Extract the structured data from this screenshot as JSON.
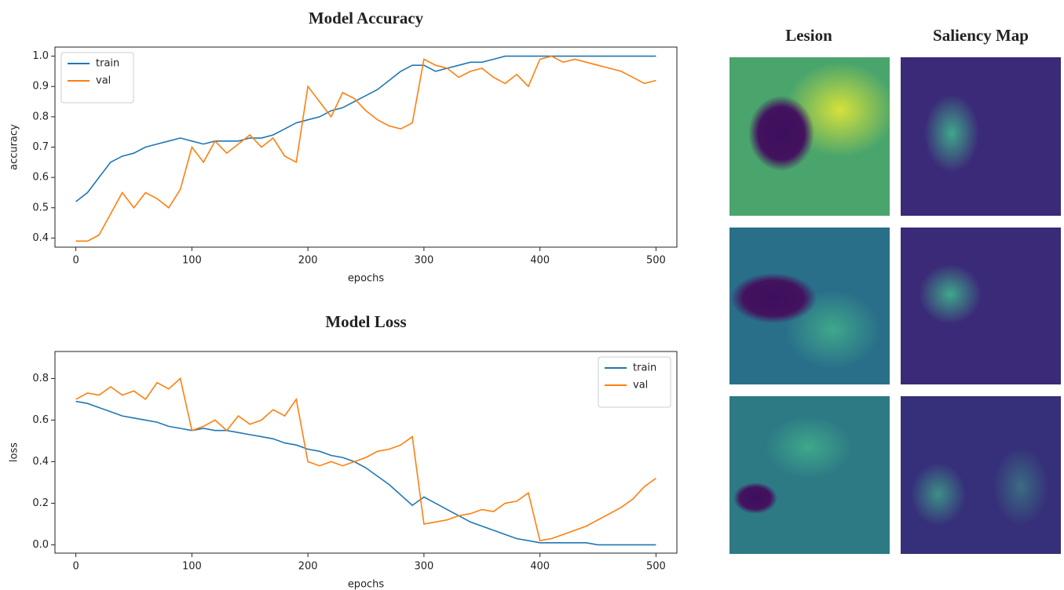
{
  "chart_data": [
    {
      "type": "line",
      "title": "Model Accuracy",
      "xlabel": "epochs",
      "ylabel": "accuracy",
      "x": [
        0,
        10,
        20,
        30,
        40,
        50,
        60,
        70,
        80,
        90,
        100,
        110,
        120,
        130,
        140,
        150,
        160,
        170,
        180,
        190,
        200,
        210,
        220,
        230,
        240,
        250,
        260,
        270,
        280,
        290,
        300,
        310,
        320,
        330,
        340,
        350,
        360,
        370,
        380,
        390,
        400,
        410,
        420,
        430,
        440,
        450,
        460,
        470,
        480,
        490,
        500
      ],
      "series": [
        {
          "name": "train",
          "color": "#1f77b4",
          "values": [
            0.52,
            0.55,
            0.6,
            0.65,
            0.67,
            0.68,
            0.7,
            0.71,
            0.72,
            0.73,
            0.72,
            0.71,
            0.72,
            0.72,
            0.72,
            0.73,
            0.73,
            0.74,
            0.76,
            0.78,
            0.79,
            0.8,
            0.82,
            0.83,
            0.85,
            0.87,
            0.89,
            0.92,
            0.95,
            0.97,
            0.97,
            0.95,
            0.96,
            0.97,
            0.98,
            0.98,
            0.99,
            1.0,
            1.0,
            1.0,
            1.0,
            1.0,
            1.0,
            1.0,
            1.0,
            1.0,
            1.0,
            1.0,
            1.0,
            1.0,
            1.0
          ]
        },
        {
          "name": "val",
          "color": "#ff7f0e",
          "values": [
            0.39,
            0.39,
            0.41,
            0.48,
            0.55,
            0.5,
            0.55,
            0.53,
            0.5,
            0.56,
            0.7,
            0.65,
            0.72,
            0.68,
            0.71,
            0.74,
            0.7,
            0.73,
            0.67,
            0.65,
            0.9,
            0.85,
            0.8,
            0.88,
            0.86,
            0.82,
            0.79,
            0.77,
            0.76,
            0.78,
            0.99,
            0.97,
            0.96,
            0.93,
            0.95,
            0.96,
            0.93,
            0.91,
            0.94,
            0.9,
            0.99,
            1.0,
            0.98,
            0.99,
            0.98,
            0.97,
            0.96,
            0.95,
            0.93,
            0.91,
            0.92
          ]
        }
      ],
      "xlim": [
        -18,
        518
      ],
      "xticks": [
        0,
        100,
        200,
        300,
        400,
        500
      ],
      "ylim": [
        0.37,
        1.03
      ],
      "yticks": [
        0.4,
        0.5,
        0.6,
        0.7,
        0.8,
        0.9,
        {
          "value": 1,
          "label": "1.0"
        }
      ],
      "legend": "upper-left"
    },
    {
      "type": "line",
      "title": "Model Loss",
      "xlabel": "epochs",
      "ylabel": "loss",
      "x": [
        0,
        10,
        20,
        30,
        40,
        50,
        60,
        70,
        80,
        90,
        100,
        110,
        120,
        130,
        140,
        150,
        160,
        170,
        180,
        190,
        200,
        210,
        220,
        230,
        240,
        250,
        260,
        270,
        280,
        290,
        300,
        310,
        320,
        330,
        340,
        350,
        360,
        370,
        380,
        390,
        400,
        410,
        420,
        430,
        440,
        450,
        460,
        470,
        480,
        490,
        500
      ],
      "series": [
        {
          "name": "train",
          "color": "#1f77b4",
          "values": [
            0.69,
            0.68,
            0.66,
            0.64,
            0.62,
            0.61,
            0.6,
            0.59,
            0.57,
            0.56,
            0.55,
            0.56,
            0.55,
            0.55,
            0.54,
            0.53,
            0.52,
            0.51,
            0.49,
            0.48,
            0.46,
            0.45,
            0.43,
            0.42,
            0.4,
            0.37,
            0.33,
            0.29,
            0.24,
            0.19,
            0.23,
            0.2,
            0.17,
            0.14,
            0.11,
            0.09,
            0.07,
            0.05,
            0.03,
            0.02,
            0.01,
            0.01,
            0.01,
            0.01,
            0.01,
            0.0,
            0.0,
            0.0,
            0.0,
            0.0,
            0.0
          ]
        },
        {
          "name": "val",
          "color": "#ff7f0e",
          "values": [
            0.7,
            0.73,
            0.72,
            0.76,
            0.72,
            0.74,
            0.7,
            0.78,
            0.75,
            0.8,
            0.55,
            0.57,
            0.6,
            0.55,
            0.62,
            0.58,
            0.6,
            0.65,
            0.62,
            0.7,
            0.4,
            0.38,
            0.4,
            0.38,
            0.4,
            0.42,
            0.45,
            0.46,
            0.48,
            0.52,
            0.1,
            0.11,
            0.12,
            0.14,
            0.15,
            0.17,
            0.16,
            0.2,
            0.21,
            0.25,
            0.02,
            0.03,
            0.05,
            0.07,
            0.09,
            0.12,
            0.15,
            0.18,
            0.22,
            0.28,
            0.32
          ]
        }
      ],
      "xlim": [
        -18,
        518
      ],
      "xticks": [
        0,
        100,
        200,
        300,
        400,
        500
      ],
      "ylim": [
        -0.04,
        0.93
      ],
      "yticks": [
        {
          "value": 0,
          "label": "0.0"
        },
        0.2,
        0.4,
        0.6,
        0.8
      ],
      "legend": "upper-right"
    }
  ],
  "panel": {
    "columns": [
      "Lesion",
      "Saliency Map"
    ]
  }
}
